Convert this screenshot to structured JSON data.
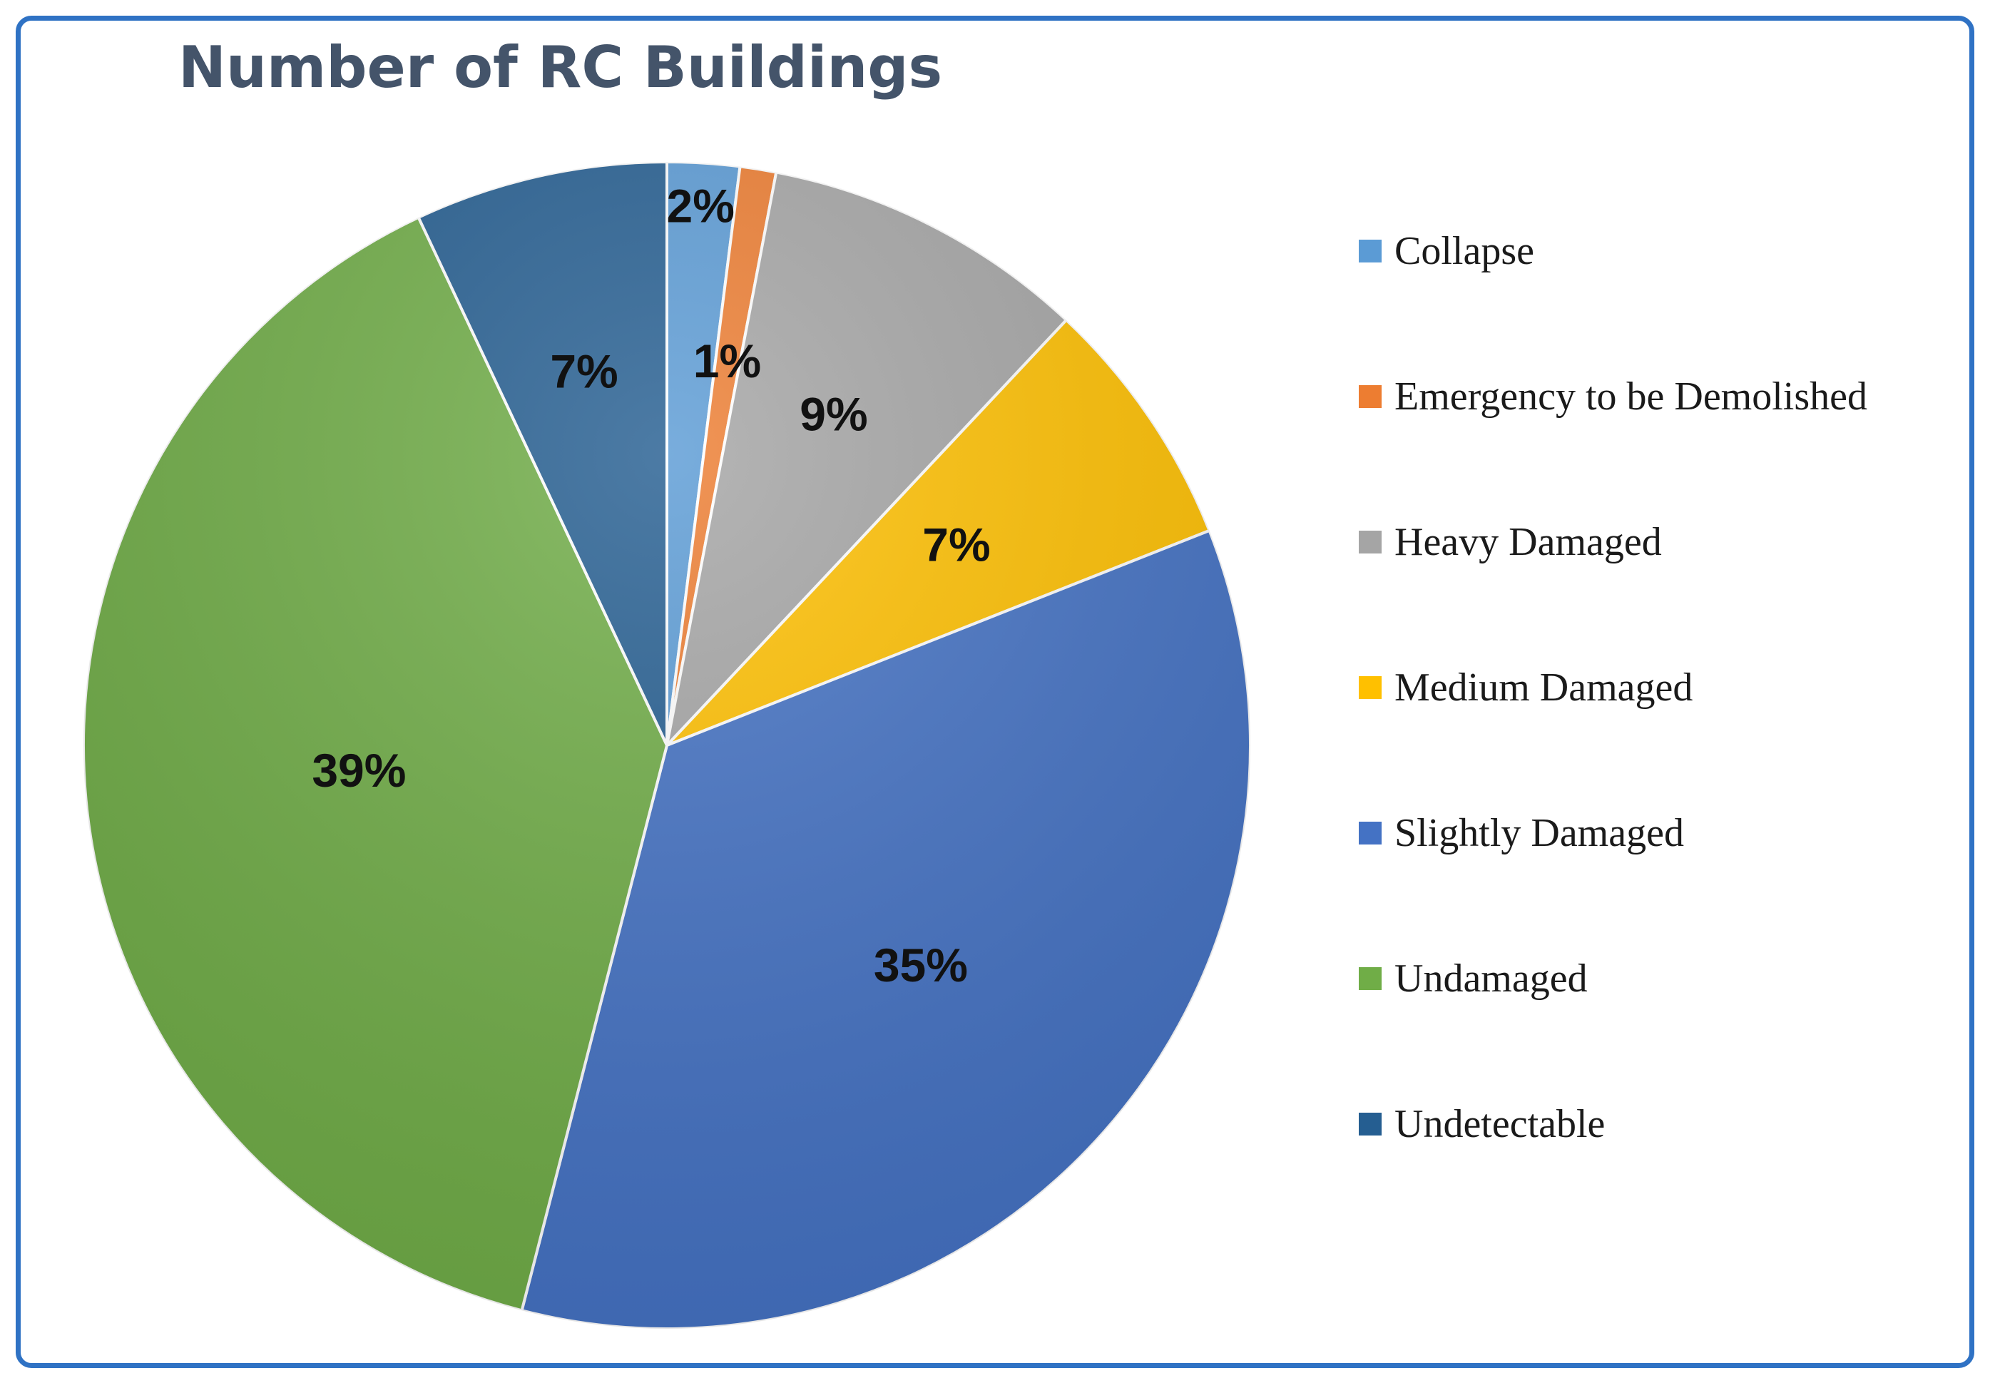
{
  "chart_data": {
    "type": "pie",
    "title": "Number of RC Buildings",
    "legend_position": "right",
    "slices": [
      {
        "name": "Collapse",
        "value": 2,
        "label": "2%",
        "color": "#5b9bd5"
      },
      {
        "name": "Emergency to be Demolished",
        "value": 1,
        "label": "1%",
        "color": "#ed7d31"
      },
      {
        "name": "Heavy Damaged",
        "value": 9,
        "label": "9%",
        "color": "#a5a5a5"
      },
      {
        "name": "Medium Damaged",
        "value": 7,
        "label": "7%",
        "color": "#ffc000"
      },
      {
        "name": "Slightly Damaged",
        "value": 35,
        "label": "35%",
        "color": "#4472c4"
      },
      {
        "name": "Undamaged",
        "value": 39,
        "label": "39%",
        "color": "#70ad47"
      },
      {
        "name": "Undetectable",
        "value": 7,
        "label": "7%",
        "color": "#255e91"
      }
    ]
  }
}
